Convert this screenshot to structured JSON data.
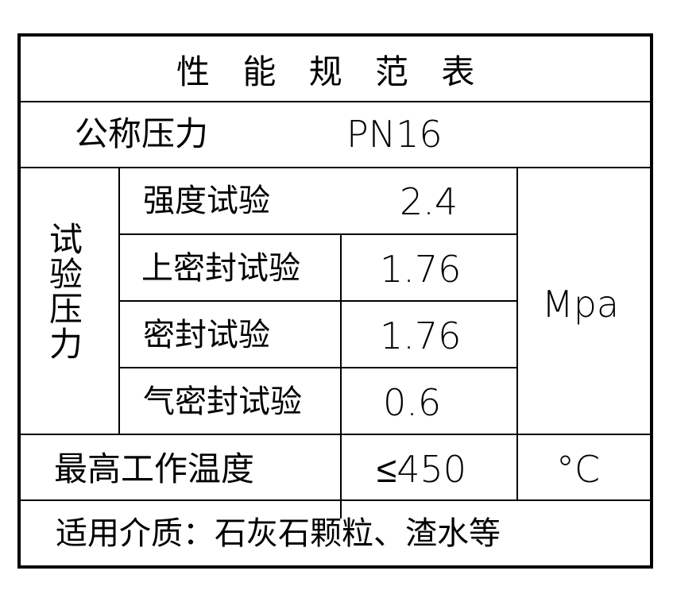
{
  "title": "性 能 规 范 表",
  "nominal_pressure": {
    "label": "公称压力",
    "value": "PN16"
  },
  "test_pressure": {
    "group_label": [
      "试",
      "验",
      "压",
      "力"
    ],
    "rows": [
      {
        "label": "强度试验",
        "value": "2.4"
      },
      {
        "label": "上密封试验",
        "value": "1.76"
      },
      {
        "label": "密封试验",
        "value": "1.76"
      },
      {
        "label": "气密封试验",
        "value": "0.6"
      }
    ],
    "unit": "Mpa"
  },
  "max_temperature": {
    "label": "最高工作温度",
    "value": "≤450",
    "unit": "°C"
  },
  "medium": "适用介质：石灰石颗粒、渣水等"
}
